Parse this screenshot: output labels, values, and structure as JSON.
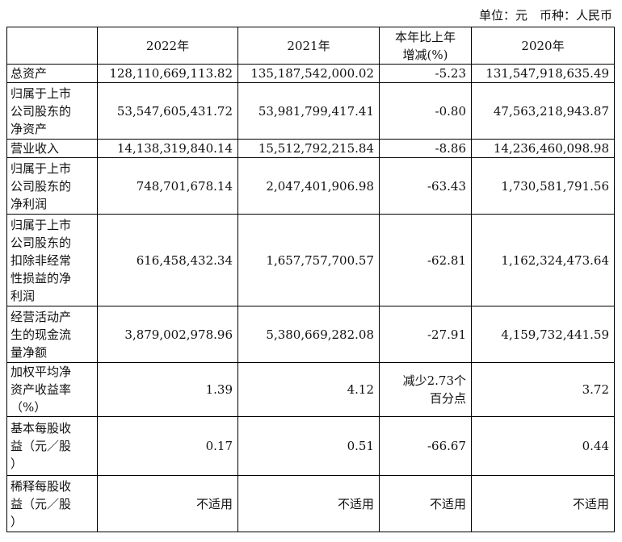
{
  "unit_note": "单位：元　币种：人民币",
  "headers": [
    "",
    "2022年",
    "2021年",
    [
      "本年比上年",
      "增减(%)"
    ],
    "2020年"
  ],
  "rows": [
    {
      "label": [
        "总资产"
      ],
      "y2022": "128,110,669,113.82",
      "y2021": "135,187,542,000.02",
      "change": [
        "-5.23"
      ],
      "y2020": "131,547,918,635.49"
    },
    {
      "label": [
        "归属于上市",
        "公司股东的",
        "净资产"
      ],
      "y2022": "53,547,605,431.72",
      "y2021": "53,981,799,417.41",
      "change": [
        "-0.80"
      ],
      "y2020": "47,563,218,943.87"
    },
    {
      "label": [
        "营业收入"
      ],
      "y2022": "14,138,319,840.14",
      "y2021": "15,512,792,215.84",
      "change": [
        "-8.86"
      ],
      "y2020": "14,236,460,098.98"
    },
    {
      "label": [
        "归属于上市",
        "公司股东的",
        "净利润"
      ],
      "y2022": "748,701,678.14",
      "y2021": "2,047,401,906.98",
      "change": [
        "-63.43"
      ],
      "y2020": "1,730,581,791.56"
    },
    {
      "label": [
        "归属于上市",
        "公司股东的",
        "扣除非经常",
        "性损益的净",
        "利润"
      ],
      "y2022": "616,458,432.34",
      "y2021": "1,657,757,700.57",
      "change": [
        "-62.81"
      ],
      "y2020": "1,162,324,473.64"
    },
    {
      "label": [
        "经营活动产",
        "生的现金流",
        "量净额"
      ],
      "y2022": "3,879,002,978.96",
      "y2021": "5,380,669,282.08",
      "change": [
        "-27.91"
      ],
      "y2020": "4,159,732,441.59"
    },
    {
      "label": [
        "加权平均净",
        "资产收益率",
        "（%）"
      ],
      "y2022": "1.39",
      "y2021": "4.12",
      "change": [
        "减少2.73个",
        "百分点"
      ],
      "y2020": "3.72"
    },
    {
      "label": [
        "基本每股收",
        "益（元／股",
        "）"
      ],
      "y2022": "0.17",
      "y2021": "0.51",
      "change": [
        "-66.67"
      ],
      "y2020": "0.44"
    },
    {
      "label": [
        "稀释每股收",
        "益（元／股",
        "）"
      ],
      "y2022": "不适用",
      "y2021": "不适用",
      "change": [
        "不适用"
      ],
      "y2020": "不适用"
    }
  ]
}
